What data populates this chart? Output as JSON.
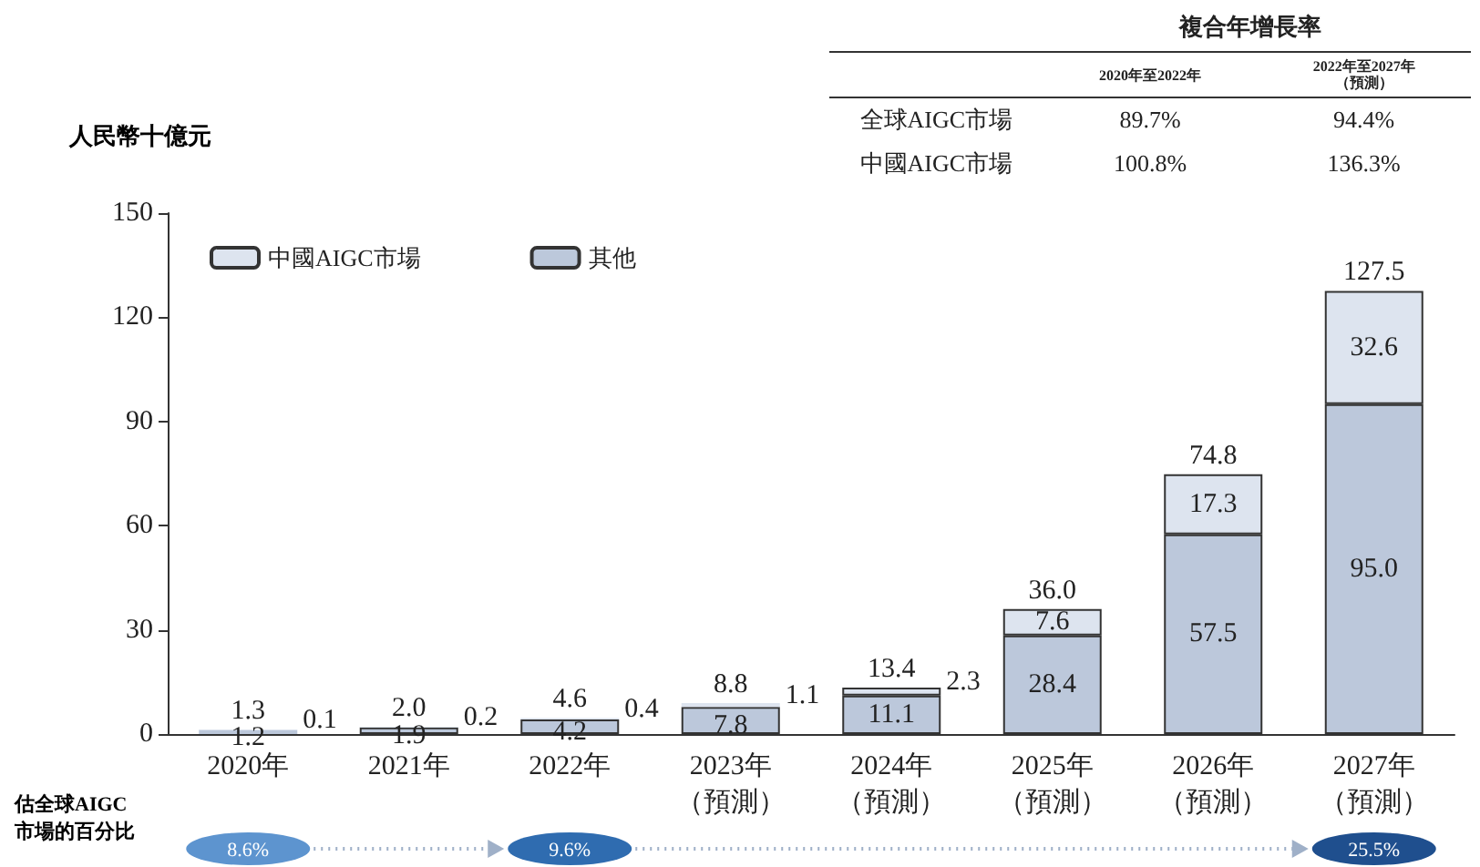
{
  "chart_data": {
    "type": "bar",
    "stacked": true,
    "ylabel": "人民幣十億元",
    "categories": [
      "2020年",
      "2021年",
      "2022年",
      "2023年（預測）",
      "2024年（預測）",
      "2025年（預測）",
      "2026年（預測）",
      "2027年（預測）"
    ],
    "series": [
      {
        "name": "其他",
        "color": "#bcc8db",
        "values": [
          1.2,
          1.9,
          4.2,
          7.8,
          11.1,
          28.4,
          57.5,
          95.0
        ],
        "value_labels": [
          "1.2",
          "1.9",
          "4.2",
          "7.8",
          "11.1",
          "28.4",
          "57.5",
          "95.0"
        ]
      },
      {
        "name": "中國AIGC市場",
        "color": "#dde4ef",
        "values": [
          0.1,
          0.2,
          0.4,
          1.1,
          2.3,
          7.6,
          17.3,
          32.6
        ],
        "value_labels": [
          "0.1",
          "0.2",
          "0.4",
          "1.1",
          "2.3",
          "7.6",
          "17.3",
          "32.6"
        ]
      }
    ],
    "totals": [
      "1.3",
      "2.0",
      "4.6",
      "8.8",
      "13.4",
      "36.0",
      "74.8",
      "127.5"
    ],
    "ylim": [
      0,
      150
    ],
    "yticks": [
      0,
      30,
      60,
      90,
      120,
      150
    ],
    "legend": "top left",
    "annotations": [
      "複合年增長率",
      "2020年至2022年",
      "2022年至2027年（預測）",
      "全球AIGC市場",
      "89.7%",
      "94.4%",
      "中國AIGC市場",
      "100.8%",
      "136.3%",
      "估全球AIGC市場的百分比",
      "8.6%",
      "9.6%",
      "25.5%"
    ]
  }
}
